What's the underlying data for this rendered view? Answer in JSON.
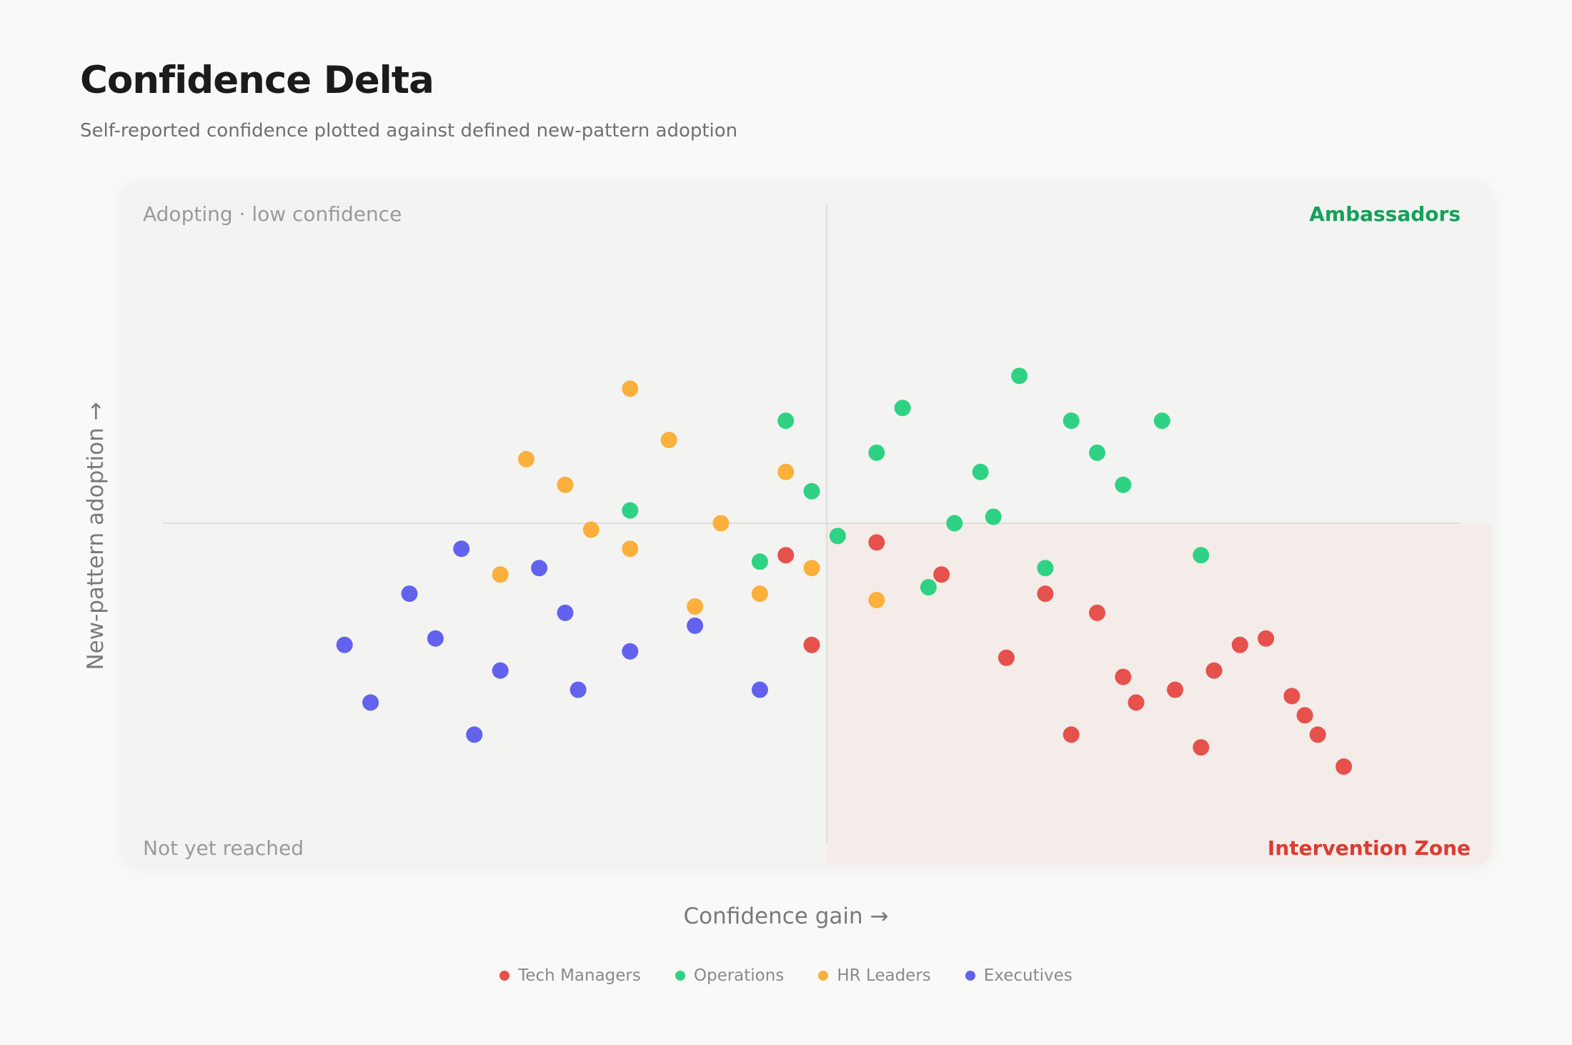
{
  "header": {
    "title": "Confidence Delta",
    "subtitle": "Self-reported confidence plotted against defined new-pattern adoption"
  },
  "chart_data": {
    "type": "scatter",
    "title": "Confidence Delta",
    "subtitle": "Self-reported confidence plotted against defined new-pattern adoption",
    "xlabel": "Confidence gain →",
    "ylabel": "New-pattern adoption →",
    "xlim": [
      0,
      100
    ],
    "ylim": [
      0,
      100
    ],
    "grid": false,
    "legend_position": "bottom-center",
    "quadrants": {
      "top_left": "Adopting · low confidence",
      "top_right": "Ambassadors",
      "bottom_left": "Not yet reached",
      "bottom_right": "Intervention Zone"
    },
    "colors": {
      "top_right_label": "#16a05a",
      "bottom_right_label": "#dc3b32",
      "intervention_fill": "#f4ece9"
    },
    "series": [
      {
        "name": "Tech Managers",
        "color": "#e6514b",
        "x": [
          48,
          50,
          55,
          60,
          65,
          70,
          68,
          72,
          74,
          75,
          78,
          80,
          81,
          83,
          85,
          87,
          88,
          89,
          91
        ],
        "y": [
          45,
          31,
          47,
          42,
          29,
          17,
          39,
          36,
          26,
          22,
          24,
          15,
          27,
          31,
          32,
          23,
          20,
          17,
          12
        ]
      },
      {
        "name": "Operations",
        "color": "#2fd284",
        "x": [
          36,
          46,
          48,
          50,
          52,
          55,
          57,
          59,
          61,
          63,
          64,
          66,
          68,
          70,
          72,
          74,
          77,
          80
        ],
        "y": [
          52,
          44,
          66,
          55,
          48,
          61,
          68,
          40,
          50,
          58,
          51,
          73,
          43,
          66,
          61,
          56,
          66,
          45
        ]
      },
      {
        "name": "HR Leaders",
        "color": "#fbb03b",
        "x": [
          26,
          28,
          31,
          33,
          36,
          36,
          39,
          41,
          43,
          46,
          48,
          50,
          55
        ],
        "y": [
          42,
          60,
          56,
          49,
          46,
          71,
          63,
          37,
          50,
          39,
          58,
          43,
          38
        ]
      },
      {
        "name": "Executives",
        "color": "#6262ee",
        "x": [
          14,
          16,
          19,
          21,
          23,
          24,
          26,
          29,
          31,
          32,
          36,
          41,
          46
        ],
        "y": [
          31,
          22,
          39,
          32,
          46,
          17,
          27,
          43,
          36,
          24,
          30,
          34,
          24
        ]
      }
    ]
  }
}
